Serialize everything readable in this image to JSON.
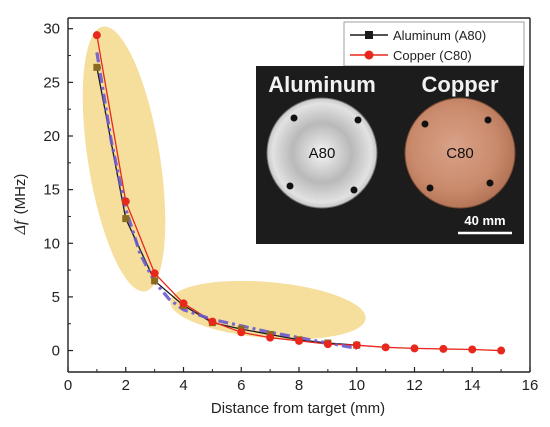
{
  "chart_data": {
    "type": "line",
    "xlabel": "Distance from target (mm)",
    "ylabel_symbol": "Δf",
    "ylabel_unit": "(MHz)",
    "xlim": [
      0,
      16
    ],
    "ylim": [
      -2,
      31
    ],
    "xticks": [
      0,
      2,
      4,
      6,
      8,
      10,
      12,
      14,
      16
    ],
    "yticks": [
      0,
      5,
      10,
      15,
      20,
      25,
      30
    ],
    "grid": false,
    "legend_position": "top-right",
    "series": [
      {
        "name": "Aluminum (A80)",
        "color": "#1a1a1a",
        "marker": "square",
        "x": [
          1,
          2,
          3,
          4,
          5,
          6,
          7,
          8,
          9,
          10
        ],
        "y": [
          26.4,
          12.3,
          6.5,
          4.2,
          2.6,
          2.0,
          1.5,
          1.0,
          0.7,
          0.5
        ]
      },
      {
        "name": "Copper (C80)",
        "color": "#e8281c",
        "marker": "circle",
        "x": [
          1,
          2,
          3,
          4,
          5,
          6,
          7,
          8,
          9,
          10,
          11,
          12,
          13,
          14,
          15
        ],
        "y": [
          29.4,
          13.9,
          7.2,
          4.4,
          2.7,
          1.7,
          1.2,
          0.9,
          0.6,
          0.5,
          0.3,
          0.2,
          0.15,
          0.1,
          0.0
        ]
      }
    ],
    "dashed_trend": {
      "color": "#6a5acd",
      "x": [
        1,
        1.5,
        2,
        2.5,
        3,
        3.5,
        4,
        5,
        6,
        7,
        8,
        9,
        10
      ],
      "y": [
        27.8,
        19.5,
        13.2,
        9.0,
        6.4,
        4.8,
        3.8,
        2.9,
        2.3,
        1.7,
        1.2,
        0.7,
        0.2
      ]
    },
    "highlight_color": "#f4d98c"
  },
  "inset_photo": {
    "labels": [
      "Aluminum",
      "Copper"
    ],
    "samples": [
      "A80",
      "C80"
    ],
    "scale_bar": "40 mm"
  }
}
